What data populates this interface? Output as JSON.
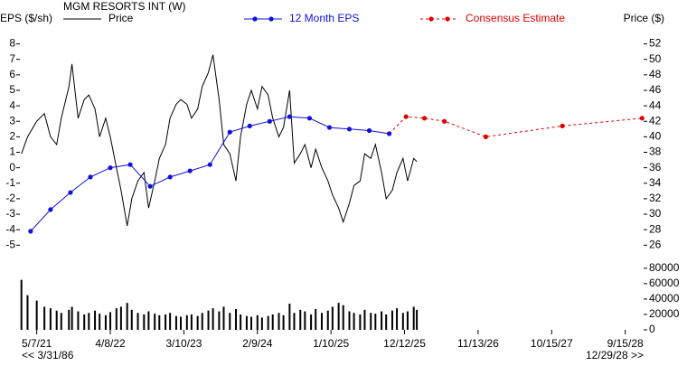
{
  "chart_data": {
    "type": "line",
    "title": "MGM RESORTS INT (W)",
    "ylabel": "EPS ($/sh)",
    "y2label": "Price ($)",
    "range_start": "<< 3/31/86",
    "range_end": "12/29/28 >>",
    "xlim": [
      -11,
      396
    ],
    "xticks": [
      {
        "value": 0,
        "label": "5/7/21"
      },
      {
        "value": 48,
        "label": "4/8/22"
      },
      {
        "value": 96,
        "label": "3/10/23"
      },
      {
        "value": 144,
        "label": "2/9/24"
      },
      {
        "value": 192,
        "label": "1/10/25"
      },
      {
        "value": 240,
        "label": "12/12/25"
      },
      {
        "value": 288,
        "label": "11/13/26"
      },
      {
        "value": 336,
        "label": "10/15/27"
      },
      {
        "value": 384,
        "label": "9/15/28"
      }
    ],
    "ylim": [
      -5.8,
      8.5
    ],
    "yticks": [
      8,
      7,
      6,
      5,
      4,
      3,
      2,
      1,
      0,
      -1,
      -2,
      -3,
      -4,
      -5
    ],
    "y2lim": [
      24.4,
      53
    ],
    "y2ticks": [
      52,
      50,
      48,
      46,
      44,
      42,
      40,
      38,
      36,
      34,
      32,
      30,
      28,
      26
    ],
    "series": [
      {
        "name": "Price",
        "color": "#000000",
        "axis": "y2",
        "markers": false,
        "dashed": false,
        "x": [
          -10,
          -6,
          0,
          5,
          9,
          13,
          16,
          21,
          23,
          27,
          31,
          34,
          38,
          41,
          45,
          48,
          52,
          55,
          59,
          62,
          66,
          70,
          73,
          77,
          80,
          84,
          87,
          91,
          94,
          98,
          101,
          105,
          108,
          112,
          115,
          119,
          122,
          126,
          130,
          133,
          137,
          140,
          144,
          147,
          151,
          154,
          158,
          161,
          165,
          168,
          172,
          175,
          179,
          182,
          186,
          190,
          193,
          197,
          200,
          204,
          207,
          211,
          214,
          218,
          221,
          225,
          228,
          232,
          235,
          239,
          242,
          246,
          248
        ],
        "values": [
          37.8,
          40,
          42,
          43,
          40,
          39,
          42.4,
          46.5,
          49.4,
          42.4,
          44.8,
          45.4,
          43.6,
          40,
          42.4,
          40,
          36,
          33.1,
          28.5,
          32,
          34.3,
          35.4,
          30.8,
          34.3,
          37.2,
          39,
          42.4,
          44.2,
          44.8,
          44.2,
          42.4,
          43.6,
          46.5,
          48.3,
          50.6,
          44.8,
          39,
          37.8,
          34.3,
          40,
          44.2,
          46,
          43.6,
          46.5,
          45.4,
          42.4,
          40,
          41.2,
          46,
          36.6,
          37.8,
          39,
          36,
          38.4,
          36,
          34.3,
          32.5,
          30.8,
          29,
          31.4,
          33.7,
          34.3,
          37.8,
          37.2,
          39,
          35.4,
          32,
          33.1,
          35.4,
          37.2,
          34.3,
          37.2,
          36.8
        ]
      },
      {
        "name": "Consensus Estimate",
        "color": "#e00000",
        "markers": true,
        "dashed": true,
        "x": [
          230,
          241,
          253,
          266,
          293,
          343,
          395
        ],
        "values": [
          2.2,
          3.3,
          3.2,
          3.0,
          2.0,
          2.7,
          3.2
        ]
      },
      {
        "name": "12 Month EPS",
        "color": "#1010d8",
        "markers": true,
        "dashed": false,
        "x": [
          -4,
          9,
          22,
          35,
          48,
          61,
          74,
          87,
          100,
          113,
          126,
          139,
          152,
          165,
          178,
          191,
          204,
          217,
          230
        ],
        "values": [
          -4.1,
          -2.7,
          -1.6,
          -0.6,
          0.0,
          0.2,
          -1.2,
          -0.6,
          -0.2,
          0.2,
          2.3,
          2.7,
          3.0,
          3.3,
          3.2,
          2.6,
          2.5,
          2.4,
          2.2
        ]
      }
    ],
    "volume": {
      "color": "#000000",
      "ylim": [
        0,
        88000
      ],
      "yticks": [
        80000,
        60000,
        40000,
        20000,
        0
      ],
      "values": [
        65000,
        45000,
        38000,
        30000,
        28000,
        25000,
        22000,
        26000,
        30000,
        24000,
        20000,
        22000,
        25000,
        21000,
        19000,
        23000,
        28000,
        30000,
        35000,
        26000,
        22000,
        20000,
        24000,
        21000,
        19000,
        20000,
        22000,
        18000,
        17000,
        19000,
        20000,
        18000,
        22000,
        25000,
        28000,
        24000,
        30000,
        22000,
        27000,
        20000,
        18000,
        17000,
        19000,
        16000,
        18000,
        20000,
        22000,
        19000,
        34000,
        22000,
        26000,
        24000,
        20000,
        27000,
        22000,
        25000,
        30000,
        35000,
        32000,
        24000,
        22000,
        20000,
        26000,
        22000,
        21000,
        24000,
        20000,
        25000,
        28000,
        22000,
        24000,
        30000,
        26000
      ]
    }
  }
}
